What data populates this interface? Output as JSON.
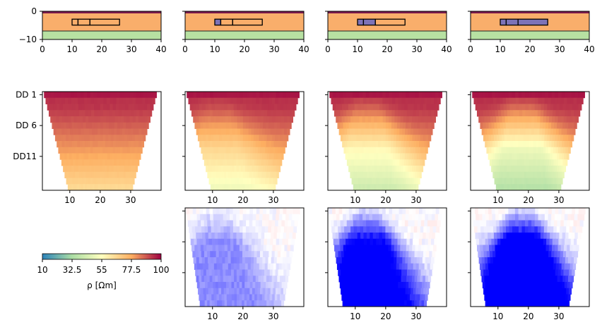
{
  "chart_data": {
    "type": "heatmap",
    "panels": 4,
    "row1_models": {
      "x_ticks": [
        "0",
        "10",
        "20",
        "30",
        "40"
      ],
      "y_ticks": [
        "0",
        "−10"
      ],
      "xlim": [
        0,
        40
      ],
      "ylim": [
        -10,
        0
      ],
      "tank_x": [
        10,
        26
      ],
      "tank_segments_x": [
        10,
        12,
        16,
        26
      ],
      "fill_level": [
        0,
        1,
        2,
        3
      ],
      "colors": {
        "air": "#7a1a4d",
        "soil": "#f9ae6b",
        "bedrock": "#b7e1a2",
        "fill": "#7d73b7",
        "outline": "#000000"
      }
    },
    "row2_pseudosections": {
      "y_ticks": [
        "DD 1",
        "DD 6",
        "DD11"
      ],
      "x_ticks": [
        "10",
        "20",
        "30"
      ],
      "levels": 16,
      "anomaly_center_x": [
        0,
        12,
        14,
        18
      ],
      "anomaly_strength": [
        0,
        0.45,
        0.75,
        0.95
      ]
    },
    "row3_differences": {
      "x_ticks": [
        "10",
        "20",
        "30"
      ],
      "anomaly_strength": [
        0.35,
        0.85,
        1.0
      ],
      "colors": {
        "positive": "#ff0000",
        "negative": "#0000ff"
      }
    },
    "colorbar": {
      "ticks": [
        "10",
        "32.5",
        "55",
        "77.5",
        "100"
      ],
      "label": "ρ [Ωm]",
      "range": [
        10,
        100
      ]
    }
  }
}
